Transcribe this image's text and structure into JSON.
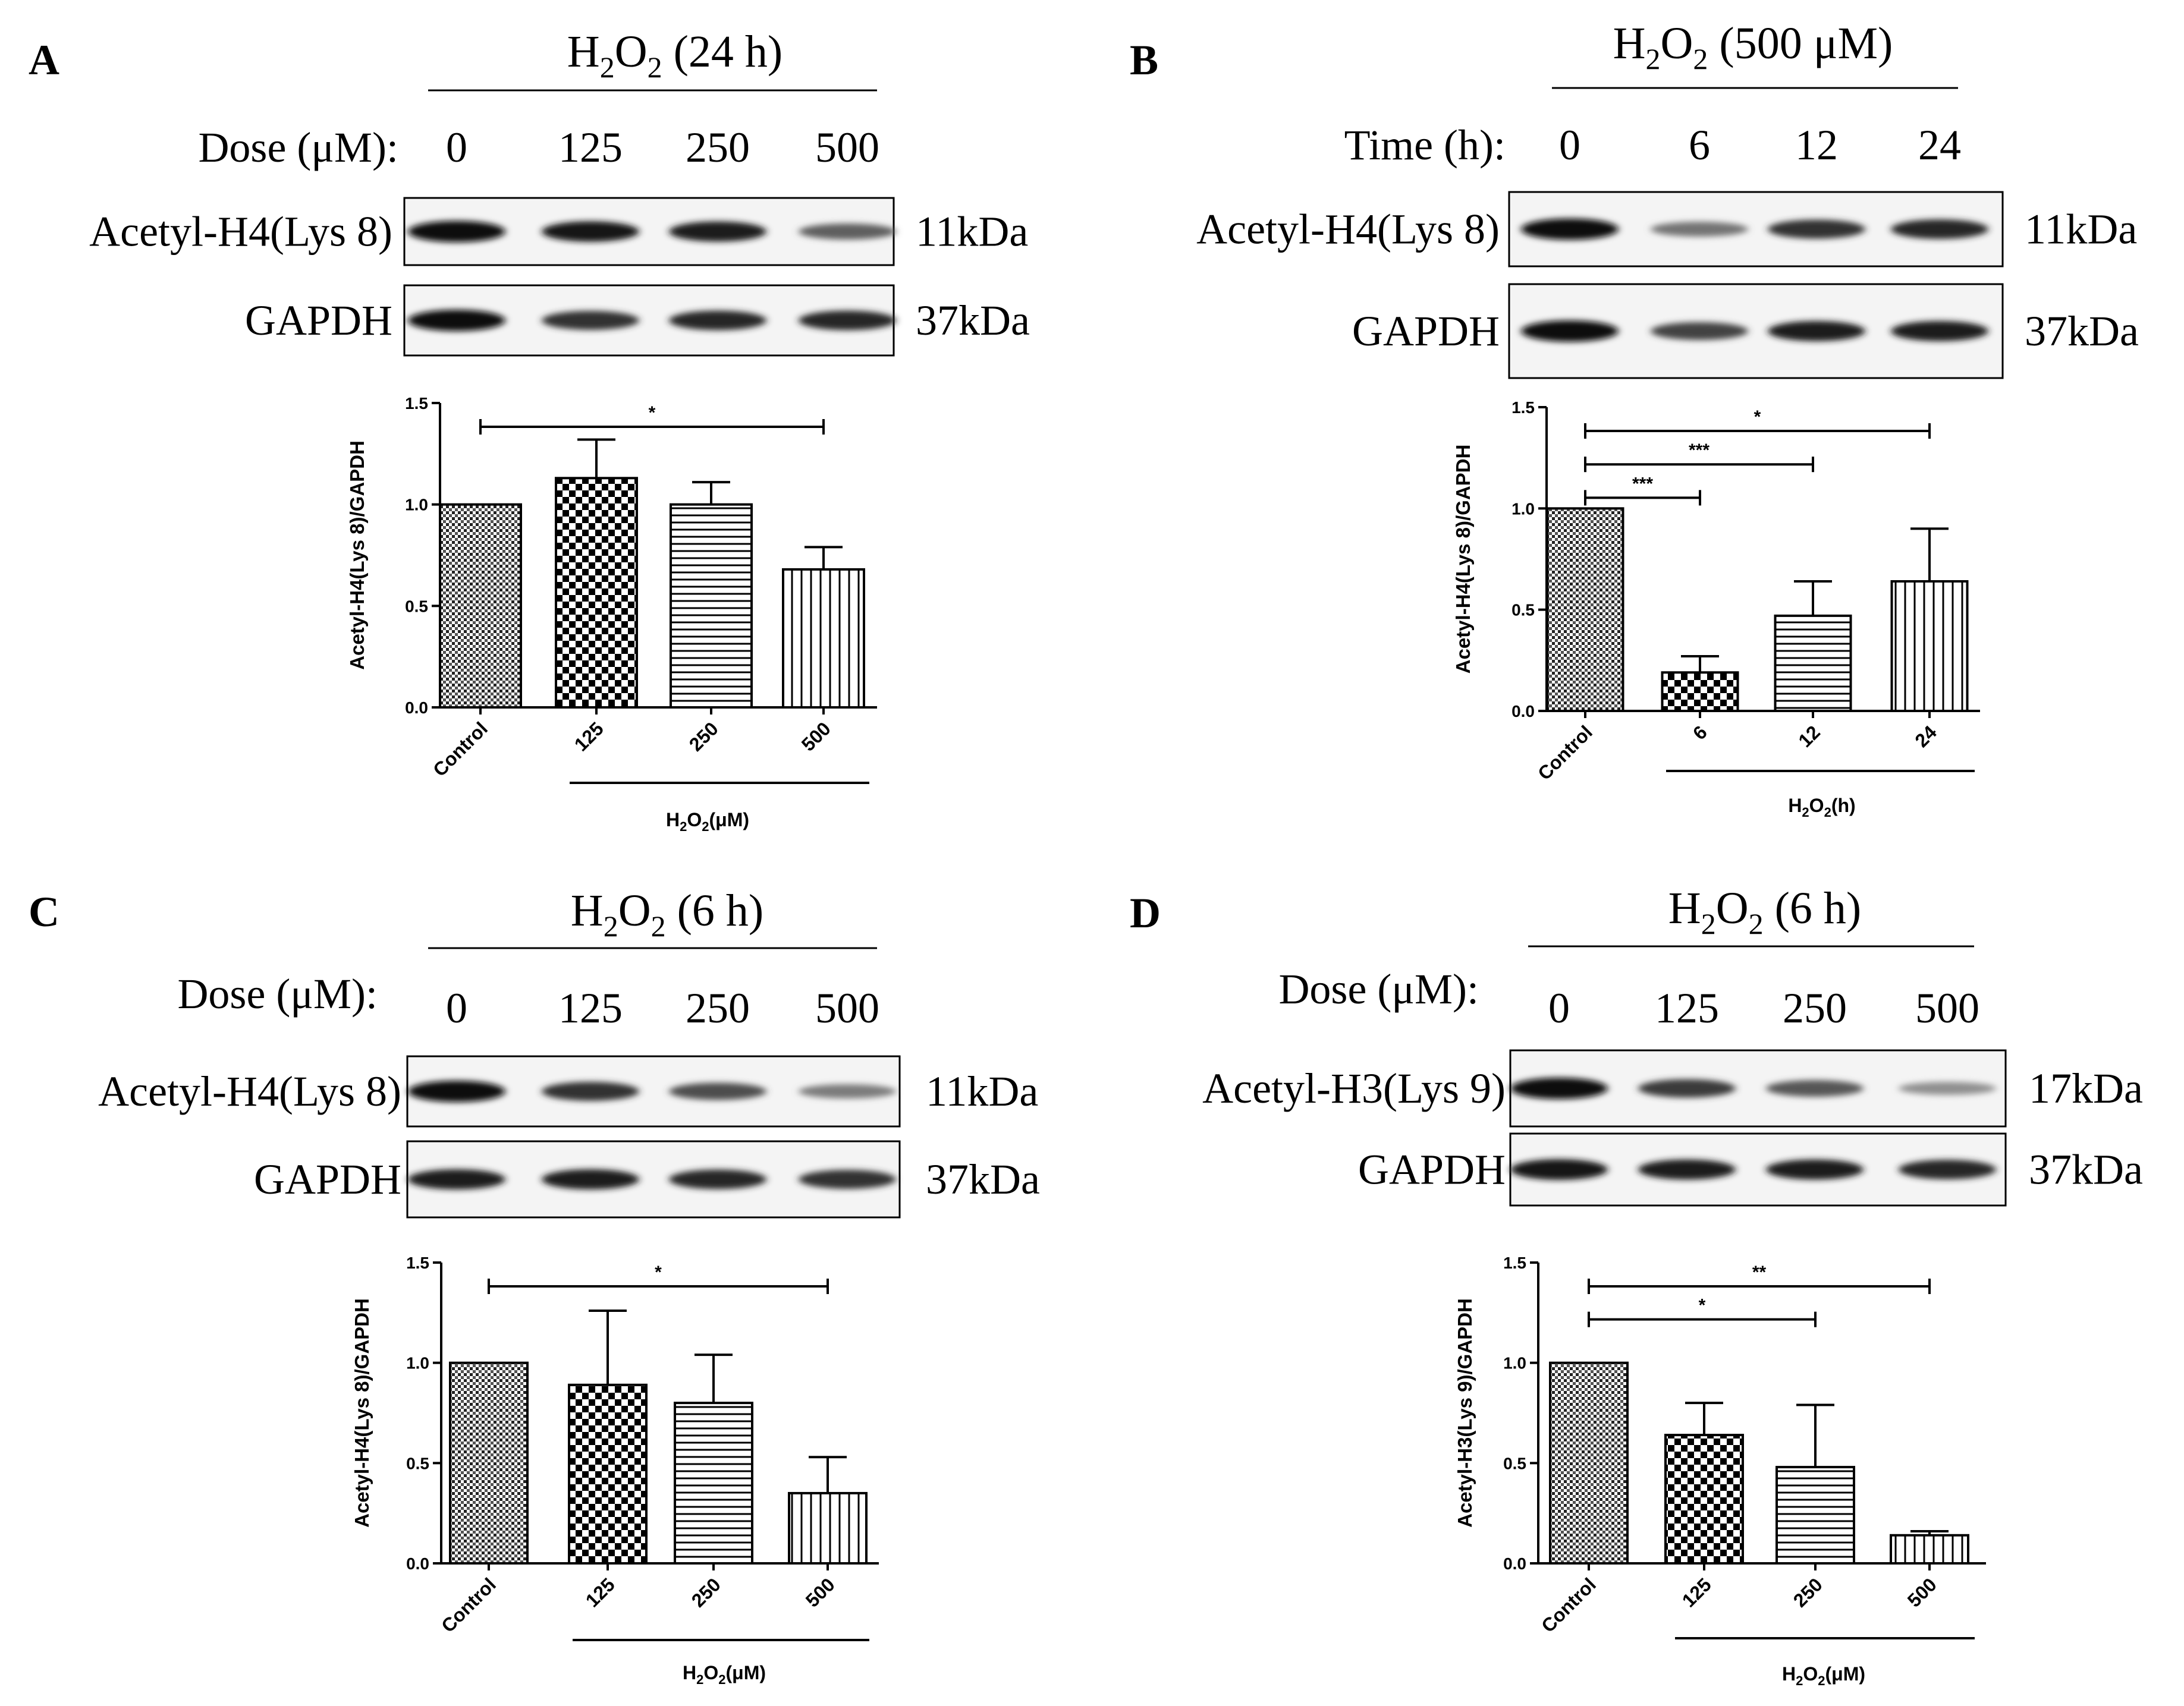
{
  "panels": [
    {
      "letter": "A",
      "header_main": "H",
      "header_sub": "2",
      "header_o": "O",
      "header_suffix": "(24 h)",
      "row_label": "Dose (μM):",
      "lanes": [
        "0",
        "125",
        "250",
        "500"
      ],
      "blots": [
        {
          "label": "Acetyl-H4(Lys 8)",
          "kda": "11kDa",
          "intensity": [
            1.0,
            0.92,
            0.9,
            0.55
          ]
        },
        {
          "label": "GAPDH",
          "kda": "37kDa",
          "intensity": [
            1.0,
            0.8,
            0.85,
            0.85
          ]
        }
      ]
    },
    {
      "letter": "B",
      "header_main": "H",
      "header_sub": "2",
      "header_o": "O",
      "header_suffix": "(500 μM)",
      "row_label": "Time (h):",
      "lanes": [
        "0",
        "6",
        "12",
        "24"
      ],
      "blots": [
        {
          "label": "Acetyl-H4(Lys 8)",
          "kda": "11kDa",
          "intensity": [
            1.0,
            0.45,
            0.8,
            0.85
          ]
        },
        {
          "label": "GAPDH",
          "kda": "37kDa",
          "intensity": [
            1.0,
            0.7,
            0.9,
            0.9
          ]
        }
      ]
    },
    {
      "letter": "C",
      "header_main": "H",
      "header_sub": "2",
      "header_o": "O",
      "header_suffix": "(6 h)",
      "row_label": "Dose (μM):",
      "lanes": [
        "0",
        "125",
        "250",
        "500"
      ],
      "blots": [
        {
          "label": "Acetyl-H4(Lys 8)",
          "kda": "11kDa",
          "intensity": [
            1.0,
            0.8,
            0.65,
            0.4
          ]
        },
        {
          "label": "GAPDH",
          "kda": "37kDa",
          "intensity": [
            0.9,
            0.9,
            0.85,
            0.8
          ]
        }
      ]
    },
    {
      "letter": "D",
      "header_main": "H",
      "header_sub": "2",
      "header_o": "O",
      "header_suffix": "(6 h)",
      "row_label": "Dose (μM):",
      "lanes": [
        "0",
        "125",
        "250",
        "500"
      ],
      "blots": [
        {
          "label": "Acetyl-H3(Lys 9)",
          "kda": "17kDa",
          "intensity": [
            1.0,
            0.75,
            0.6,
            0.3
          ]
        },
        {
          "label": "GAPDH",
          "kda": "37kDa",
          "intensity": [
            0.95,
            0.9,
            0.9,
            0.85
          ]
        }
      ]
    }
  ],
  "chart_data": [
    {
      "type": "bar",
      "panel": "A",
      "categories": [
        "Control",
        "125",
        "250",
        "500"
      ],
      "values": [
        1.0,
        1.13,
        1.0,
        0.68
      ],
      "errors": [
        0.0,
        0.19,
        0.11,
        0.11
      ],
      "patterns": [
        "dots",
        "checker",
        "hlines",
        "vlines"
      ],
      "ylabel": "Acetyl-H4(Lys 8)/GAPDH",
      "ylim": [
        0,
        1.5
      ],
      "yticks": [
        "0.0",
        "0.5",
        "1.0",
        "1.5"
      ],
      "xgroup_label": "H2O2(μM)",
      "xgroup_main": "H",
      "xgroup_o": "O",
      "xgroup_sub": "2",
      "xgroup_unit": "(μM)",
      "significance": [
        {
          "from": 0,
          "to": 3,
          "label": "*"
        }
      ]
    },
    {
      "type": "bar",
      "panel": "B",
      "categories": [
        "Control",
        "6",
        "12",
        "24"
      ],
      "values": [
        1.0,
        0.19,
        0.47,
        0.64
      ],
      "errors": [
        0.0,
        0.08,
        0.17,
        0.26
      ],
      "patterns": [
        "dots",
        "checker",
        "hlines",
        "vlines"
      ],
      "ylabel": "Acetyl-H4(Lys 8)/GAPDH",
      "ylim": [
        0,
        1.5
      ],
      "yticks": [
        "0.0",
        "0.5",
        "1.0",
        "1.5"
      ],
      "xgroup_label": "H2O2(h)",
      "xgroup_main": "H",
      "xgroup_o": "O",
      "xgroup_sub": "2",
      "xgroup_unit": "(h)",
      "significance": [
        {
          "from": 0,
          "to": 3,
          "label": "*"
        },
        {
          "from": 0,
          "to": 2,
          "label": "***"
        },
        {
          "from": 0,
          "to": 1,
          "label": "***"
        }
      ]
    },
    {
      "type": "bar",
      "panel": "C",
      "categories": [
        "Control",
        "125",
        "250",
        "500"
      ],
      "values": [
        1.0,
        0.89,
        0.8,
        0.35
      ],
      "errors": [
        0.0,
        0.37,
        0.24,
        0.18
      ],
      "patterns": [
        "dots",
        "checker",
        "hlines",
        "vlines"
      ],
      "ylabel": "Acetyl-H4(Lys 8)/GAPDH",
      "ylim": [
        0,
        1.5
      ],
      "yticks": [
        "0.0",
        "0.5",
        "1.0",
        "1.5"
      ],
      "xgroup_label": "H2O2(μM)",
      "xgroup_main": "H",
      "xgroup_o": "O",
      "xgroup_sub": "2",
      "xgroup_unit": "(μM)",
      "significance": [
        {
          "from": 0,
          "to": 3,
          "label": "*"
        }
      ]
    },
    {
      "type": "bar",
      "panel": "D",
      "categories": [
        "Control",
        "125",
        "250",
        "500"
      ],
      "values": [
        1.0,
        0.64,
        0.48,
        0.14
      ],
      "errors": [
        0.0,
        0.16,
        0.31,
        0.02
      ],
      "patterns": [
        "dots",
        "checker",
        "hlines",
        "vlines"
      ],
      "ylabel": "Acetyl-H3(Lys 9)/GAPDH",
      "ylim": [
        0,
        1.5
      ],
      "yticks": [
        "0.0",
        "0.5",
        "1.0",
        "1.5"
      ],
      "xgroup_label": "H2O2(μM)",
      "xgroup_main": "H",
      "xgroup_o": "O",
      "xgroup_sub": "2",
      "xgroup_unit": "(μM)",
      "significance": [
        {
          "from": 0,
          "to": 3,
          "label": "**"
        },
        {
          "from": 0,
          "to": 2,
          "label": "*"
        }
      ]
    }
  ]
}
